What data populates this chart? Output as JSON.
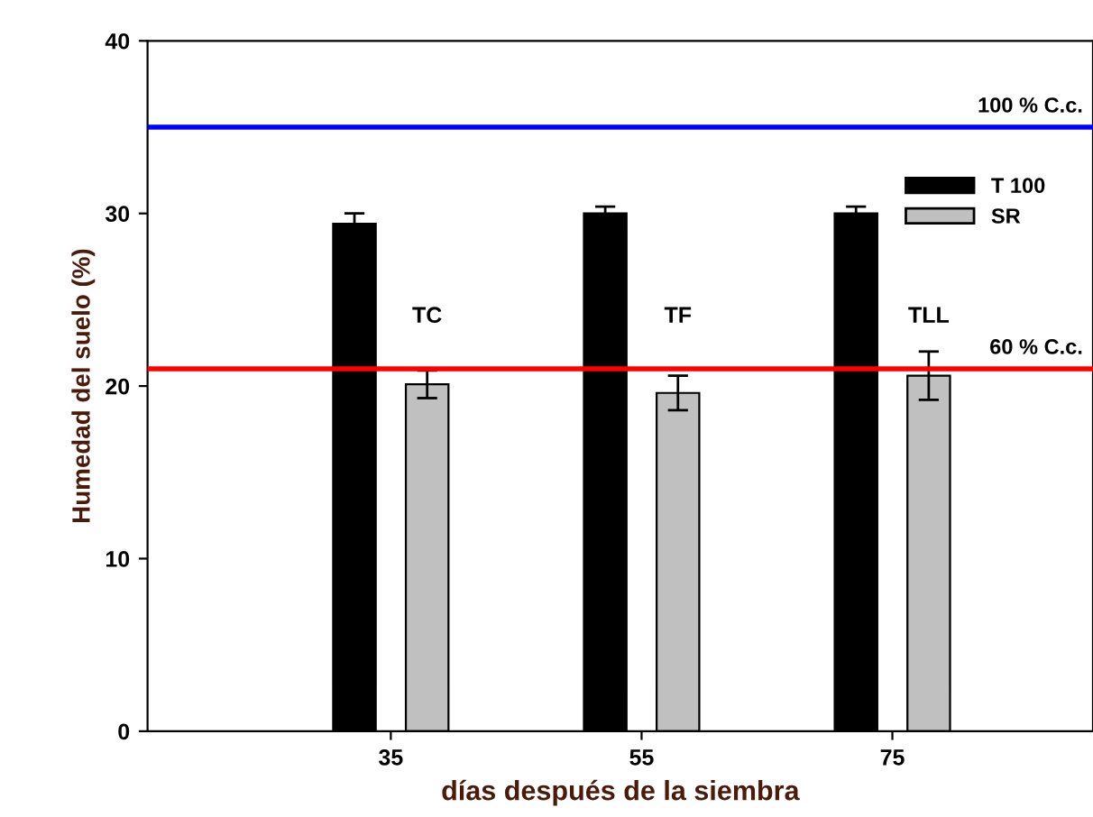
{
  "chart_data": {
    "type": "bar",
    "xlabel": "días después de la siembra",
    "ylabel": "Humedad del suelo (%)",
    "categories": [
      "35",
      "55",
      "75"
    ],
    "series": [
      {
        "name": "T 100",
        "color": "#000000",
        "values": [
          29.4,
          30.0,
          30.0
        ],
        "errors": [
          0.6,
          0.4,
          0.4
        ]
      },
      {
        "name": "SR",
        "color": "#c0c0c0",
        "values": [
          20.1,
          19.6,
          20.6
        ],
        "errors": [
          0.8,
          1.0,
          1.4
        ]
      }
    ],
    "ylim": [
      0,
      40
    ],
    "yticks": [
      0,
      10,
      20,
      30,
      40
    ],
    "grid": false,
    "legend": "top right",
    "ref_lines": [
      {
        "axis": "y",
        "value": 35,
        "label": "100 % C.c.",
        "color": "#0000ff"
      },
      {
        "axis": "y",
        "value": 21,
        "label": "60 % C.c.",
        "color": "#ff0000"
      }
    ],
    "annotations": [
      "TC",
      "TF",
      "TLL"
    ]
  }
}
